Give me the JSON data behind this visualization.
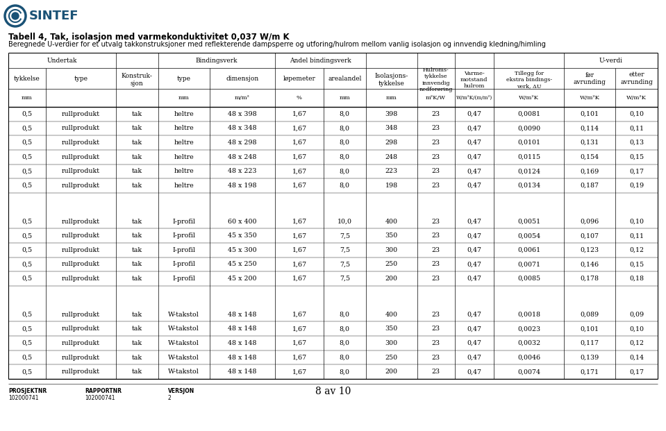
{
  "title1": "Tabell 4, Tak, isolasjon med varmekonduktivitet 0,037 W/m K",
  "title2": "Beregnede U-verdier for et utvalg takkonstruksjoner med reflekterende dampsperre og utforing/hulrom mellom vanlig isolasjon og innvendig kledning/himling",
  "rows_group1": [
    [
      "0,5",
      "rullprodukt",
      "tak",
      "heltre",
      "48 x 398",
      "1,67",
      "8,0",
      "398",
      "23",
      "0,47",
      "0,0081",
      "0,101",
      "0,10"
    ],
    [
      "0,5",
      "rullprodukt",
      "tak",
      "heltre",
      "48 x 348",
      "1,67",
      "8,0",
      "348",
      "23",
      "0,47",
      "0,0090",
      "0,114",
      "0,11"
    ],
    [
      "0,5",
      "rullprodukt",
      "tak",
      "heltre",
      "48 x 298",
      "1,67",
      "8,0",
      "298",
      "23",
      "0,47",
      "0,0101",
      "0,131",
      "0,13"
    ],
    [
      "0,5",
      "rullprodukt",
      "tak",
      "heltre",
      "48 x 248",
      "1,67",
      "8,0",
      "248",
      "23",
      "0,47",
      "0,0115",
      "0,154",
      "0,15"
    ],
    [
      "0,5",
      "rullprodukt",
      "tak",
      "heltre",
      "48 x 223",
      "1,67",
      "8,0",
      "223",
      "23",
      "0,47",
      "0,0124",
      "0,169",
      "0,17"
    ],
    [
      "0,5",
      "rullprodukt",
      "tak",
      "heltre",
      "48 x 198",
      "1,67",
      "8,0",
      "198",
      "23",
      "0,47",
      "0,0134",
      "0,187",
      "0,19"
    ]
  ],
  "rows_group2": [
    [
      "0,5",
      "rullprodukt",
      "tak",
      "I-profil",
      "60 x 400",
      "1,67",
      "10,0",
      "400",
      "23",
      "0,47",
      "0,0051",
      "0,096",
      "0,10"
    ],
    [
      "0,5",
      "rullprodukt",
      "tak",
      "I-profil",
      "45 x 350",
      "1,67",
      "7,5",
      "350",
      "23",
      "0,47",
      "0,0054",
      "0,107",
      "0,11"
    ],
    [
      "0,5",
      "rullprodukt",
      "tak",
      "I-profil",
      "45 x 300",
      "1,67",
      "7,5",
      "300",
      "23",
      "0,47",
      "0,0061",
      "0,123",
      "0,12"
    ],
    [
      "0,5",
      "rullprodukt",
      "tak",
      "I-profil",
      "45 x 250",
      "1,67",
      "7,5",
      "250",
      "23",
      "0,47",
      "0,0071",
      "0,146",
      "0,15"
    ],
    [
      "0,5",
      "rullprodukt",
      "tak",
      "I-profil",
      "45 x 200",
      "1,67",
      "7,5",
      "200",
      "23",
      "0,47",
      "0,0085",
      "0,178",
      "0,18"
    ]
  ],
  "rows_group3": [
    [
      "0,5",
      "rullprodukt",
      "tak",
      "W-takstol",
      "48 x 148",
      "1,67",
      "8,0",
      "400",
      "23",
      "0,47",
      "0,0018",
      "0,089",
      "0,09"
    ],
    [
      "0,5",
      "rullprodukt",
      "tak",
      "W-takstol",
      "48 x 148",
      "1,67",
      "8,0",
      "350",
      "23",
      "0,47",
      "0,0023",
      "0,101",
      "0,10"
    ],
    [
      "0,5",
      "rullprodukt",
      "tak",
      "W-takstol",
      "48 x 148",
      "1,67",
      "8,0",
      "300",
      "23",
      "0,47",
      "0,0032",
      "0,117",
      "0,12"
    ],
    [
      "0,5",
      "rullprodukt",
      "tak",
      "W-takstol",
      "48 x 148",
      "1,67",
      "8,0",
      "250",
      "23",
      "0,47",
      "0,0046",
      "0,139",
      "0,14"
    ],
    [
      "0,5",
      "rullprodukt",
      "tak",
      "W-takstol",
      "48 x 148",
      "1,67",
      "8,0",
      "200",
      "23",
      "0,47",
      "0,0074",
      "0,171",
      "0,17"
    ]
  ],
  "footer": {
    "prosjektnr_label": "PROSJEKTNR",
    "prosjektnr_val": "102000741",
    "rapportnr_label": "RAPPORTNR",
    "rapportnr_val": "102000741",
    "versjon_label": "VERSJON",
    "versjon_val": "2",
    "page": "8 av 10"
  },
  "bg_color": "#ffffff",
  "text_color": "#000000",
  "line_color": "#000000",
  "sintef_blue": "#1a5276",
  "sintef_ring_color": "#1a5276"
}
